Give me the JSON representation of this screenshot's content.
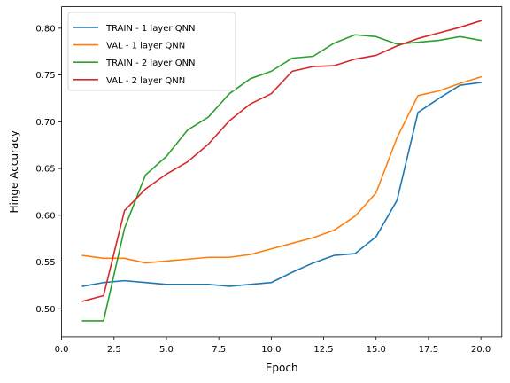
{
  "chart_data": {
    "type": "line",
    "title": "",
    "xlabel": "Epoch",
    "ylabel": "Hinge Accuracy",
    "xlim": [
      0.0,
      21.0
    ],
    "ylim": [
      0.47,
      0.823
    ],
    "xticks": [
      0.0,
      2.5,
      5.0,
      7.5,
      10.0,
      12.5,
      15.0,
      17.5,
      20.0
    ],
    "xtick_labels": [
      "0.0",
      "2.5",
      "5.0",
      "7.5",
      "10.0",
      "12.5",
      "15.0",
      "17.5",
      "20.0"
    ],
    "yticks": [
      0.5,
      0.55,
      0.6,
      0.65,
      0.7,
      0.75,
      0.8
    ],
    "ytick_labels": [
      "0.50",
      "0.55",
      "0.60",
      "0.65",
      "0.70",
      "0.75",
      "0.80"
    ],
    "grid": false,
    "legend_position": "top-left",
    "x": [
      1,
      2,
      3,
      4,
      5,
      6,
      7,
      8,
      9,
      10,
      11,
      12,
      13,
      14,
      15,
      16,
      17,
      18,
      19,
      20
    ],
    "series": [
      {
        "name": "TRAIN - 1 layer QNN",
        "color": "#1f77b4",
        "values": [
          0.524,
          0.528,
          0.53,
          0.528,
          0.526,
          0.526,
          0.526,
          0.524,
          0.526,
          0.528,
          0.539,
          0.549,
          0.557,
          0.559,
          0.577,
          0.616,
          0.71,
          0.725,
          0.739,
          0.742
        ]
      },
      {
        "name": "VAL - 1 layer QNN",
        "color": "#ff7f0e",
        "values": [
          0.557,
          0.554,
          0.554,
          0.549,
          0.551,
          0.553,
          0.555,
          0.555,
          0.558,
          0.564,
          0.57,
          0.576,
          0.584,
          0.599,
          0.624,
          0.683,
          0.728,
          0.733,
          0.741,
          0.748
        ]
      },
      {
        "name": "TRAIN - 2 layer QNN",
        "color": "#2ca02c",
        "values": [
          0.487,
          0.487,
          0.586,
          0.643,
          0.663,
          0.691,
          0.705,
          0.73,
          0.746,
          0.754,
          0.768,
          0.77,
          0.784,
          0.793,
          0.791,
          0.783,
          0.785,
          0.787,
          0.791,
          0.787
        ]
      },
      {
        "name": "VAL - 2 layer QNN",
        "color": "#d62728",
        "values": [
          0.508,
          0.514,
          0.605,
          0.628,
          0.644,
          0.657,
          0.676,
          0.701,
          0.719,
          0.73,
          0.754,
          0.759,
          0.76,
          0.767,
          0.771,
          0.781,
          0.789,
          0.795,
          0.801,
          0.808
        ]
      }
    ]
  }
}
